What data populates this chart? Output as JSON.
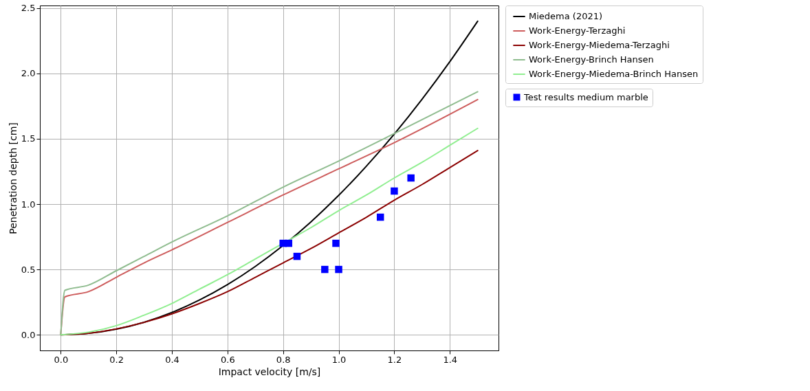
{
  "chart_data": {
    "type": "line",
    "xlabel": "Impact velocity [m/s]",
    "ylabel": "Penetration depth [cm]",
    "xlim": [
      -0.075,
      1.575
    ],
    "ylim": [
      -0.12,
      2.52
    ],
    "xticks": [
      {
        "value": 0,
        "label": "0.0"
      },
      {
        "value": 0.2,
        "label": "0.2"
      },
      {
        "value": 0.4,
        "label": "0.4"
      },
      {
        "value": 0.6,
        "label": "0.6"
      },
      {
        "value": 0.8,
        "label": "0.8"
      },
      {
        "value": 1,
        "label": "1.0"
      },
      {
        "value": 1.2,
        "label": "1.2"
      },
      {
        "value": 1.4,
        "label": "1.4"
      }
    ],
    "yticks": [
      {
        "value": 0,
        "label": "0.0"
      },
      {
        "value": 0.5,
        "label": "0.5"
      },
      {
        "value": 1,
        "label": "1.0"
      },
      {
        "value": 1.5,
        "label": "1.5"
      },
      {
        "value": 2,
        "label": "2.0"
      },
      {
        "value": 2.5,
        "label": "2.5"
      }
    ],
    "grid": true,
    "legend": "right",
    "marker": "none",
    "line_style": "solid",
    "series": [
      {
        "name": "Miedema (2021)",
        "color": "#000000",
        "x": [
          0,
          0.1,
          0.2,
          0.3,
          0.4,
          0.5,
          0.6,
          0.7,
          0.8,
          0.9,
          1.0,
          1.1,
          1.2,
          1.3,
          1.4,
          1.5
        ],
        "values": [
          0,
          0.011,
          0.043,
          0.096,
          0.171,
          0.267,
          0.384,
          0.523,
          0.683,
          0.864,
          1.067,
          1.291,
          1.536,
          1.803,
          2.091,
          2.4
        ]
      },
      {
        "name": "Work-Energy-Terzaghi",
        "color": "#cd5c5c",
        "x": [
          0,
          0.015,
          0.1,
          0.2,
          0.3,
          0.4,
          0.6,
          0.8,
          1.0,
          1.2,
          1.5
        ],
        "values": [
          0,
          0.29,
          0.33,
          0.44,
          0.55,
          0.65,
          0.86,
          1.07,
          1.27,
          1.47,
          1.8
        ]
      },
      {
        "name": "Work-Energy-Miedema-Terzaghi",
        "color": "#8b0000",
        "x": [
          0,
          0.1,
          0.2,
          0.3,
          0.4,
          0.5,
          0.6,
          0.7,
          0.8,
          0.9,
          1.0,
          1.1,
          1.2,
          1.3,
          1.4,
          1.5
        ],
        "values": [
          0,
          0.012,
          0.045,
          0.095,
          0.16,
          0.24,
          0.33,
          0.44,
          0.55,
          0.66,
          0.78,
          0.9,
          1.03,
          1.15,
          1.28,
          1.41
        ]
      },
      {
        "name": "Work-Energy-Brinch Hansen",
        "color": "#8fbc8f",
        "x": [
          0,
          0.015,
          0.1,
          0.2,
          0.3,
          0.4,
          0.6,
          0.8,
          1.0,
          1.2,
          1.5
        ],
        "values": [
          0,
          0.34,
          0.38,
          0.49,
          0.6,
          0.71,
          0.91,
          1.13,
          1.33,
          1.54,
          1.86
        ]
      },
      {
        "name": "Work-Energy-Miedema-Brinch Hansen",
        "color": "#90ee90",
        "x": [
          0,
          0.1,
          0.2,
          0.3,
          0.4,
          0.5,
          0.6,
          0.7,
          0.8,
          0.9,
          1.0,
          1.1,
          1.2,
          1.3,
          1.4,
          1.5
        ],
        "values": [
          0,
          0.02,
          0.07,
          0.15,
          0.24,
          0.35,
          0.46,
          0.58,
          0.7,
          0.82,
          0.95,
          1.07,
          1.2,
          1.32,
          1.45,
          1.58
        ]
      },
      {
        "name": "Test results medium marble",
        "type": "scatter",
        "marker": "square",
        "color": "#0000ff",
        "x": [
          0.8,
          0.82,
          0.85,
          0.95,
          0.99,
          1.0,
          1.15,
          1.2,
          1.26
        ],
        "values": [
          0.7,
          0.7,
          0.6,
          0.5,
          0.7,
          0.5,
          0.9,
          1.1,
          1.2
        ]
      }
    ]
  }
}
